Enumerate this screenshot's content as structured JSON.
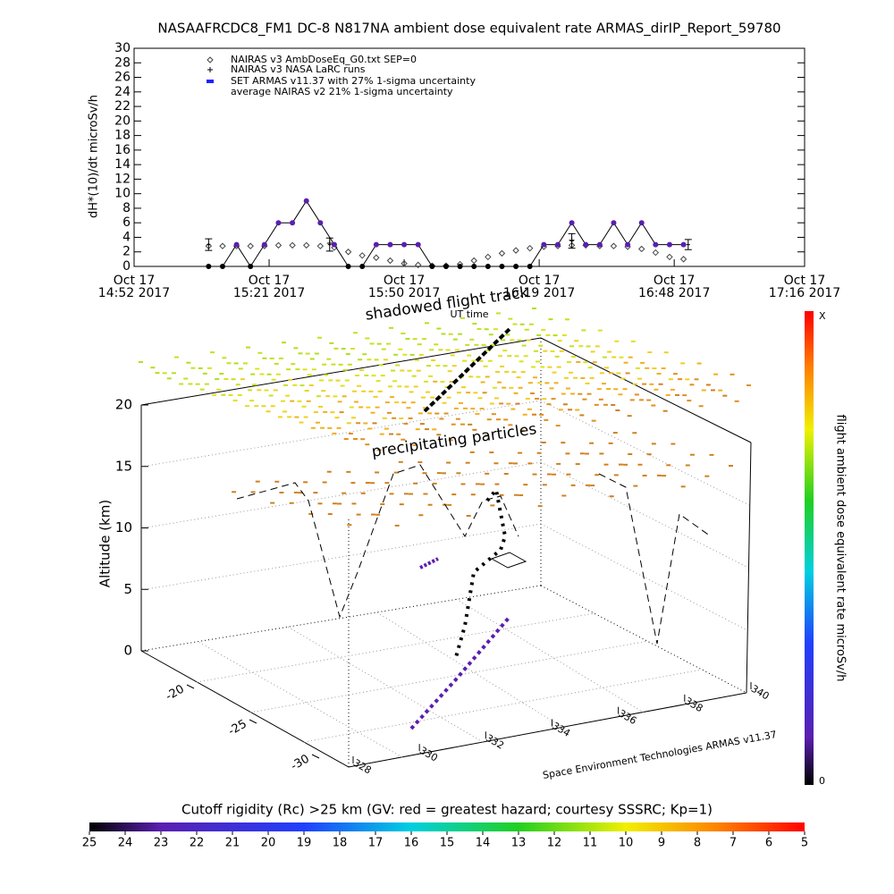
{
  "chart_data": [
    {
      "type": "line",
      "title": "NASAAFRCDC8_FM1 DC-8   N817NA ambient dose equivalent rate ARMAS_dirIP_Report_59780",
      "ylabel": "dH*(10)/dt microSv/h",
      "xlabel": "UT time",
      "xlim": [
        "2017-10-17T14:52",
        "2017-10-17T17:16"
      ],
      "xticks": [
        {
          "value": "2017-10-17T14:52",
          "label": [
            "Oct 17",
            "14:52 2017"
          ]
        },
        {
          "value": "2017-10-17T15:21",
          "label": [
            "Oct 17",
            "15:21 2017"
          ]
        },
        {
          "value": "2017-10-17T15:50",
          "label": [
            "Oct 17",
            "15:50 2017"
          ]
        },
        {
          "value": "2017-10-17T16:19",
          "label": [
            "Oct 17",
            "16:19 2017"
          ]
        },
        {
          "value": "2017-10-17T16:48",
          "label": [
            "Oct 17",
            "16:48 2017"
          ]
        },
        {
          "value": "2017-10-17T17:16",
          "label": [
            "Oct 17",
            "17:16 2017"
          ]
        }
      ],
      "ylim": [
        0,
        30
      ],
      "yticks": [
        0,
        2,
        4,
        6,
        8,
        10,
        12,
        14,
        16,
        18,
        20,
        22,
        24,
        26,
        28,
        30
      ],
      "x": [
        "2017-10-17T15:08",
        "2017-10-17T15:11",
        "2017-10-17T15:14",
        "2017-10-17T15:17",
        "2017-10-17T15:20",
        "2017-10-17T15:23",
        "2017-10-17T15:26",
        "2017-10-17T15:29",
        "2017-10-17T15:32",
        "2017-10-17T15:35",
        "2017-10-17T15:38",
        "2017-10-17T15:41",
        "2017-10-17T15:44",
        "2017-10-17T15:47",
        "2017-10-17T15:50",
        "2017-10-17T15:53",
        "2017-10-17T15:56",
        "2017-10-17T15:59",
        "2017-10-17T16:02",
        "2017-10-17T16:05",
        "2017-10-17T16:08",
        "2017-10-17T16:11",
        "2017-10-17T16:14",
        "2017-10-17T16:17",
        "2017-10-17T16:20",
        "2017-10-17T16:23",
        "2017-10-17T16:26",
        "2017-10-17T16:29",
        "2017-10-17T16:32",
        "2017-10-17T16:35",
        "2017-10-17T16:38",
        "2017-10-17T16:41",
        "2017-10-17T16:44",
        "2017-10-17T16:47",
        "2017-10-17T16:50"
      ],
      "series": [
        {
          "name": "NAIRAS v3 AmbDoseEq_G0.txt SEP=0",
          "marker": "diamond",
          "color": "#444444",
          "values": [
            2.8,
            2.8,
            2.8,
            2.8,
            2.8,
            2.9,
            2.9,
            2.9,
            2.8,
            2.6,
            2.0,
            1.5,
            1.2,
            0.8,
            0.4,
            0.2,
            0.1,
            0.1,
            0.3,
            0.8,
            1.3,
            1.8,
            2.2,
            2.5,
            2.7,
            2.8,
            2.9,
            2.9,
            2.8,
            2.8,
            2.7,
            2.4,
            1.9,
            1.3,
            1.0
          ]
        },
        {
          "name": "SET ARMAS v11.37 with 27% 1-sigma uncertainty",
          "marker": "circle",
          "color": "#5a1fb0",
          "values": [
            0,
            0,
            3,
            0,
            3,
            6,
            6,
            9,
            6,
            3,
            0,
            0,
            3,
            3,
            3,
            3,
            0,
            0,
            0,
            0,
            0,
            0,
            0,
            0,
            3,
            3,
            6,
            3,
            3,
            6,
            3,
            6,
            3,
            3,
            3
          ]
        }
      ],
      "larc": {
        "name": "NAIRAS v3 NASA LaRC runs",
        "x": [
          "2017-10-17T15:34",
          "2017-10-17T16:26"
        ],
        "values": [
          3.2,
          3.6
        ]
      },
      "average": {
        "name": "average NAIRAS v2 21% 1-sigma uncertainty",
        "x": [
          "2017-10-17T15:08",
          "2017-10-17T15:34",
          "2017-10-17T16:26",
          "2017-10-17T16:51"
        ],
        "values": [
          3.0,
          3.0,
          3.5,
          3.0
        ],
        "errors": [
          0.8,
          0.9,
          1.0,
          0.7
        ]
      }
    },
    {
      "type": "scatter3d",
      "zlabel": "Altitude (km)",
      "zticks": [
        0,
        5,
        10,
        15,
        20
      ],
      "yticks": [
        -20,
        -25,
        -30
      ],
      "xticks": [
        328,
        330,
        332,
        334,
        336,
        338,
        340
      ],
      "annotations": [
        "shadowed flight track",
        "precipitating particles"
      ],
      "credit": "Space Environment Technologies ARMAS v11.37"
    },
    {
      "type": "colorbar",
      "label": "flight ambient dose equivalent rate microSv/h",
      "ticks": [
        "X",
        "0"
      ]
    },
    {
      "type": "colorbar",
      "label": "Cutoff rigidity (Rc) >25 km (GV: red = greatest hazard; courtesy SSSRC; Kp=1)",
      "ticks": [
        25,
        24,
        23,
        22,
        21,
        20,
        19,
        18,
        17,
        16,
        15,
        14,
        13,
        12,
        11,
        10,
        9,
        8,
        7,
        6,
        5
      ]
    }
  ]
}
